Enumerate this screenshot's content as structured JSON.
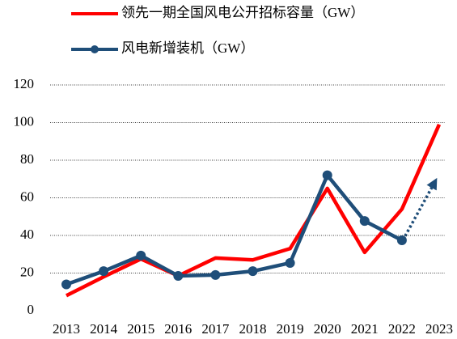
{
  "chart_data": {
    "type": "line",
    "categories": [
      "2013",
      "2014",
      "2015",
      "2016",
      "2017",
      "2018",
      "2019",
      "2020",
      "2021",
      "2022",
      "2023"
    ],
    "series": [
      {
        "name": "领先一期全国风电公开招标容量（GW）",
        "color": "#ff0000",
        "marker": false,
        "values": [
          8,
          18,
          27.5,
          18.5,
          28,
          27,
          33,
          65,
          31,
          54,
          99
        ]
      },
      {
        "name": "风电新增装机（GW）",
        "color": "#1f4e79",
        "marker": true,
        "values": [
          14,
          21,
          29.3,
          18.5,
          19,
          21,
          25.4,
          72,
          47.7,
          37.4,
          null
        ]
      }
    ],
    "ylim": [
      0,
      120
    ],
    "yticks": [
      0,
      20,
      40,
      60,
      80,
      100,
      120
    ],
    "grid": true
  }
}
